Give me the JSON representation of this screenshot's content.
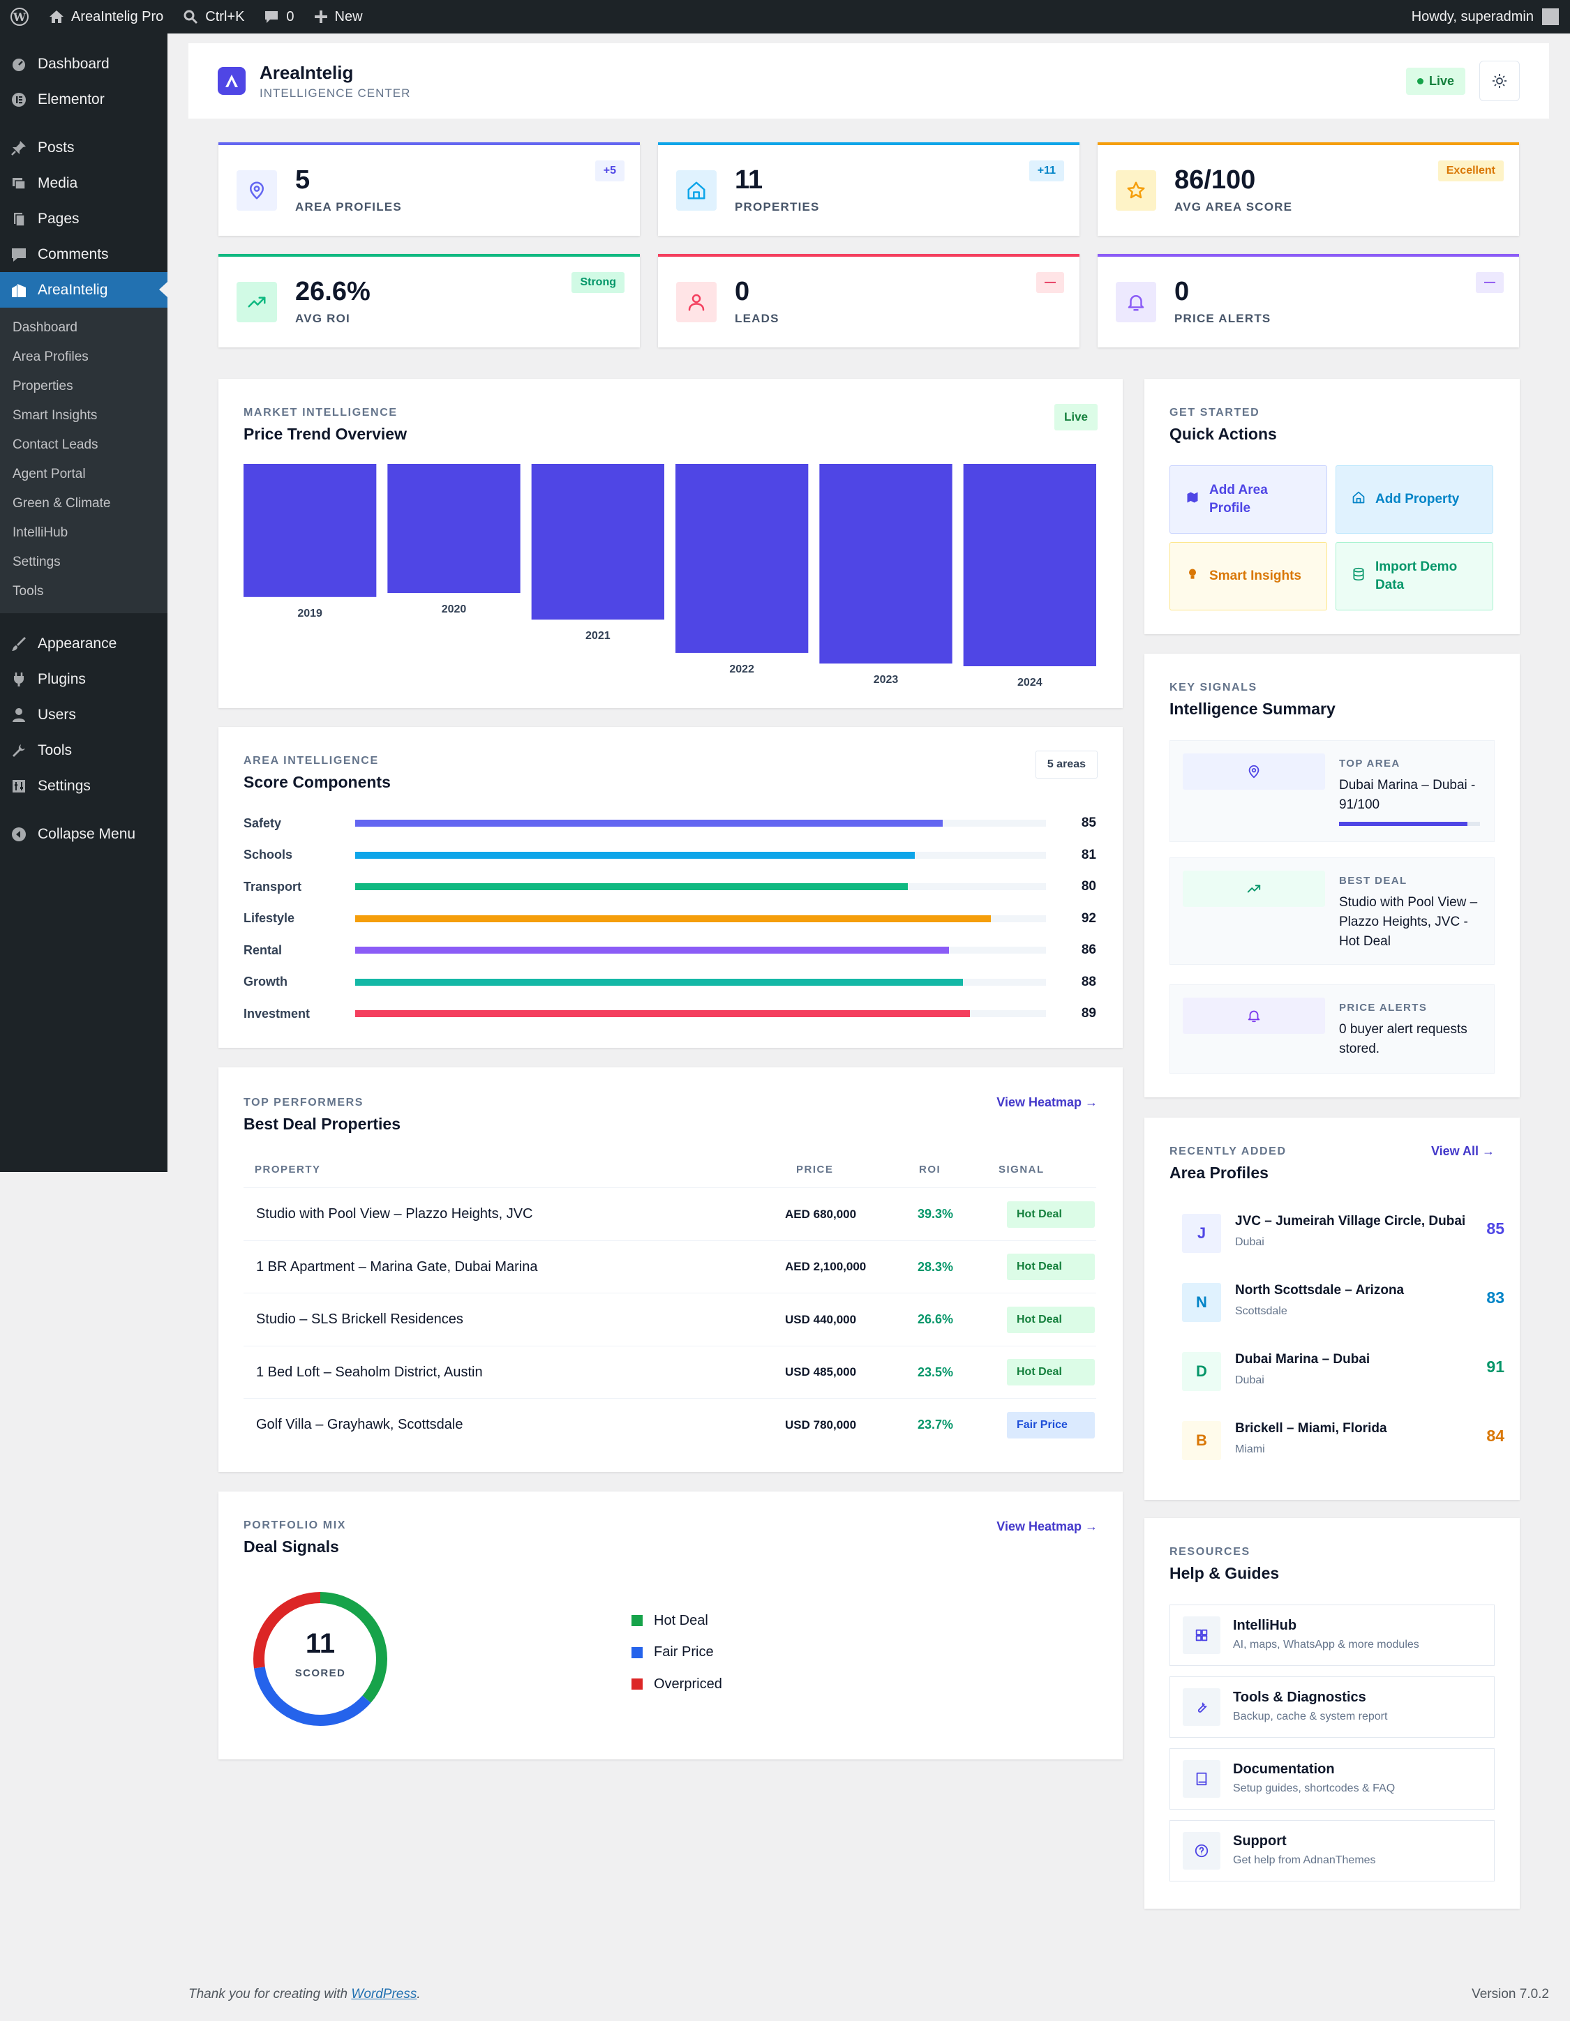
{
  "adminbar": {
    "site_name": "AreaIntelig Pro",
    "search_shortcut": "Ctrl+K",
    "comments_count": "0",
    "new_label": "New",
    "greeting": "Howdy, superadmin"
  },
  "sidebar": {
    "items_top": [
      {
        "label": "Dashboard",
        "icon": "dashboard-icon"
      },
      {
        "label": "Elementor",
        "icon": "elementor-icon"
      }
    ],
    "items_mid": [
      {
        "label": "Posts",
        "icon": "pin-icon"
      },
      {
        "label": "Media",
        "icon": "media-icon"
      },
      {
        "label": "Pages",
        "icon": "pages-icon"
      },
      {
        "label": "Comments",
        "icon": "comment-icon"
      },
      {
        "label": "AreaIntelig",
        "icon": "building-icon",
        "active": true
      }
    ],
    "submenu": [
      "Dashboard",
      "Area Profiles",
      "Properties",
      "Smart Insights",
      "Contact Leads",
      "Agent Portal",
      "Green & Climate",
      "IntelliHub",
      "Settings",
      "Tools"
    ],
    "items_bottom": [
      {
        "label": "Appearance",
        "icon": "brush-icon"
      },
      {
        "label": "Plugins",
        "icon": "plug-icon"
      },
      {
        "label": "Users",
        "icon": "user-icon"
      },
      {
        "label": "Tools",
        "icon": "wrench-icon"
      },
      {
        "label": "Settings",
        "icon": "sliders-icon"
      }
    ],
    "collapse_label": "Collapse Menu"
  },
  "header": {
    "brand_name": "AreaIntelig",
    "brand_sub": "INTELLIGENCE CENTER",
    "live_label": "Live"
  },
  "stats": [
    {
      "value": "5",
      "label": "AREA PROFILES",
      "badge": "+5",
      "accent": "#6366f1",
      "badge_bg": "#eef2ff",
      "badge_color": "#4f46e5",
      "icon": "map-pin-icon"
    },
    {
      "value": "11",
      "label": "PROPERTIES",
      "badge": "+11",
      "accent": "#0ea5e9",
      "badge_bg": "#e0f2fe",
      "badge_color": "#0284c7",
      "icon": "home-icon"
    },
    {
      "value": "86/100",
      "label": "AVG AREA SCORE",
      "badge": "Excellent",
      "accent": "#f59e0b",
      "badge_bg": "#fef3c7",
      "badge_color": "#d97706",
      "icon": "star-icon"
    },
    {
      "value": "26.6%",
      "label": "AVG ROI",
      "badge": "Strong",
      "accent": "#10b981",
      "badge_bg": "#d1fae5",
      "badge_color": "#059669",
      "icon": "trending-up-icon"
    },
    {
      "value": "0",
      "label": "LEADS",
      "badge": "—",
      "accent": "#f43f5e",
      "badge_bg": "#ffe4e6",
      "badge_color": "#e11d48",
      "icon": "person-icon"
    },
    {
      "value": "0",
      "label": "PRICE ALERTS",
      "badge": "—",
      "accent": "#8b5cf6",
      "badge_bg": "#ede9fe",
      "badge_color": "#7c3aed",
      "icon": "bell-icon"
    }
  ],
  "price_trend": {
    "eyebrow": "MARKET INTELLIGENCE",
    "title": "Price Trend Overview",
    "badge": "Live"
  },
  "chart_data": {
    "type": "bar",
    "categories": [
      "2019",
      "2020",
      "2021",
      "2022",
      "2023",
      "2024"
    ],
    "values": [
      100,
      97,
      117,
      142,
      150,
      152
    ],
    "ylim": [
      0,
      152
    ],
    "color": "#4f46e5",
    "grid": false,
    "title": "Price Trend Overview",
    "note": "relative index (unlabeled)"
  },
  "score_components": {
    "eyebrow": "AREA INTELLIGENCE",
    "title": "Score Components",
    "badge": "5 areas",
    "rows": [
      {
        "label": "Safety",
        "value": 85,
        "color": "#6366f1"
      },
      {
        "label": "Schools",
        "value": 81,
        "color": "#0ea5e9"
      },
      {
        "label": "Transport",
        "value": 80,
        "color": "#10b981"
      },
      {
        "label": "Lifestyle",
        "value": 92,
        "color": "#f59e0b"
      },
      {
        "label": "Rental",
        "value": 86,
        "color": "#8b5cf6"
      },
      {
        "label": "Growth",
        "value": 88,
        "color": "#14b8a6"
      },
      {
        "label": "Investment",
        "value": 89,
        "color": "#f43f5e"
      }
    ]
  },
  "best_deals": {
    "eyebrow": "TOP PERFORMERS",
    "title": "Best Deal Properties",
    "link": "View Heatmap →",
    "columns": [
      "PROPERTY",
      "PRICE",
      "ROI",
      "SIGNAL"
    ],
    "rows": [
      {
        "name": "Studio with Pool View – Plazzo Heights, JVC",
        "price": "AED 680,000",
        "roi": "39.3%",
        "signal": "Hot Deal"
      },
      {
        "name": "1 BR Apartment – Marina Gate, Dubai Marina",
        "price": "AED 2,100,000",
        "roi": "28.3%",
        "signal": "Hot Deal"
      },
      {
        "name": "Studio – SLS Brickell Residences",
        "price": "USD 440,000",
        "roi": "26.6%",
        "signal": "Hot Deal"
      },
      {
        "name": "1 Bed Loft – Seaholm District, Austin",
        "price": "USD 485,000",
        "roi": "23.5%",
        "signal": "Hot Deal"
      },
      {
        "name": "Golf Villa – Grayhawk, Scottsdale",
        "price": "USD 780,000",
        "roi": "23.7%",
        "signal": "Fair Price"
      }
    ]
  },
  "deal_signals": {
    "eyebrow": "PORTFOLIO MIX",
    "title": "Deal Signals",
    "link": "View Heatmap →",
    "total": "11",
    "total_label": "SCORED",
    "items": [
      {
        "name": "Hot Deal",
        "count": "4",
        "pct": "36%",
        "value": 4,
        "color": "#16a34a"
      },
      {
        "name": "Fair Price",
        "count": "4",
        "pct": "36%",
        "value": 4,
        "color": "#2563eb"
      },
      {
        "name": "Overpriced",
        "count": "3",
        "pct": "27%",
        "value": 3,
        "color": "#dc2626"
      }
    ]
  },
  "quick_actions": {
    "eyebrow": "GET STARTED",
    "title": "Quick Actions",
    "buttons": [
      {
        "label": "Add Area Profile",
        "icon": "map-icon",
        "bg": "#eef2ff",
        "border": "#c7d2fe",
        "color": "#4f46e5"
      },
      {
        "label": "Add Property",
        "icon": "home-icon",
        "bg": "#e0f2fe",
        "border": "#bae6fd",
        "color": "#0284c7"
      },
      {
        "label": "Smart Insights",
        "icon": "bulb-icon",
        "bg": "#fffbeb",
        "border": "#fde68a",
        "color": "#d97706"
      },
      {
        "label": "Import Demo Data",
        "icon": "database-icon",
        "bg": "#ecfdf5",
        "border": "#a7f3d0",
        "color": "#059669"
      }
    ]
  },
  "summary": {
    "eyebrow": "KEY SIGNALS",
    "title": "Intelligence Summary",
    "items": [
      {
        "tag": "TOP AREA",
        "text": "Dubai Marina – Dubai - 91/100",
        "icon": "map-pin-icon",
        "bg": "#eef2ff",
        "progress": 0.91
      },
      {
        "tag": "BEST DEAL",
        "text": "Studio with Pool View – Plazzo Heights, JVC - Hot Deal",
        "icon": "trending-up-icon",
        "bg": "#ecfdf5"
      },
      {
        "tag": "PRICE ALERTS",
        "text": "0 buyer alert requests stored.",
        "icon": "bell-icon",
        "bg": "#f1f0fe"
      }
    ]
  },
  "area_profiles": {
    "eyebrow": "RECENTLY ADDED",
    "title": "Area Profiles",
    "link": "View All →",
    "rows": [
      {
        "initial": "J",
        "name": "JVC – Jumeirah Village Circle, Dubai",
        "sub": "Dubai",
        "score": "85",
        "color": "#4f46e5",
        "bg": "#eef2ff"
      },
      {
        "initial": "N",
        "name": "North Scottsdale – Arizona",
        "sub": "Scottsdale",
        "score": "83",
        "color": "#0284c7",
        "bg": "#e0f2fe"
      },
      {
        "initial": "D",
        "name": "Dubai Marina – Dubai",
        "sub": "Dubai",
        "score": "91",
        "color": "#059669",
        "bg": "#ecfdf5"
      },
      {
        "initial": "B",
        "name": "Brickell – Miami, Florida",
        "sub": "Miami",
        "score": "84",
        "color": "#d97706",
        "bg": "#fffbeb"
      }
    ]
  },
  "help": {
    "eyebrow": "RESOURCES",
    "title": "Help & Guides",
    "items": [
      {
        "title": "IntelliHub",
        "sub": "AI, maps, WhatsApp & more modules",
        "icon": "grid-icon"
      },
      {
        "title": "Tools & Diagnostics",
        "sub": "Backup, cache & system report",
        "icon": "wrench-icon"
      },
      {
        "title": "Documentation",
        "sub": "Setup guides, shortcodes & FAQ",
        "icon": "book-icon"
      },
      {
        "title": "Support",
        "sub": "Get help from AdnanThemes",
        "icon": "help-circle-icon"
      }
    ]
  },
  "footer": {
    "thanks": "Thank you for creating with",
    "wp_link": "WordPress",
    "period": ".",
    "version": "Version 7.0.2"
  }
}
